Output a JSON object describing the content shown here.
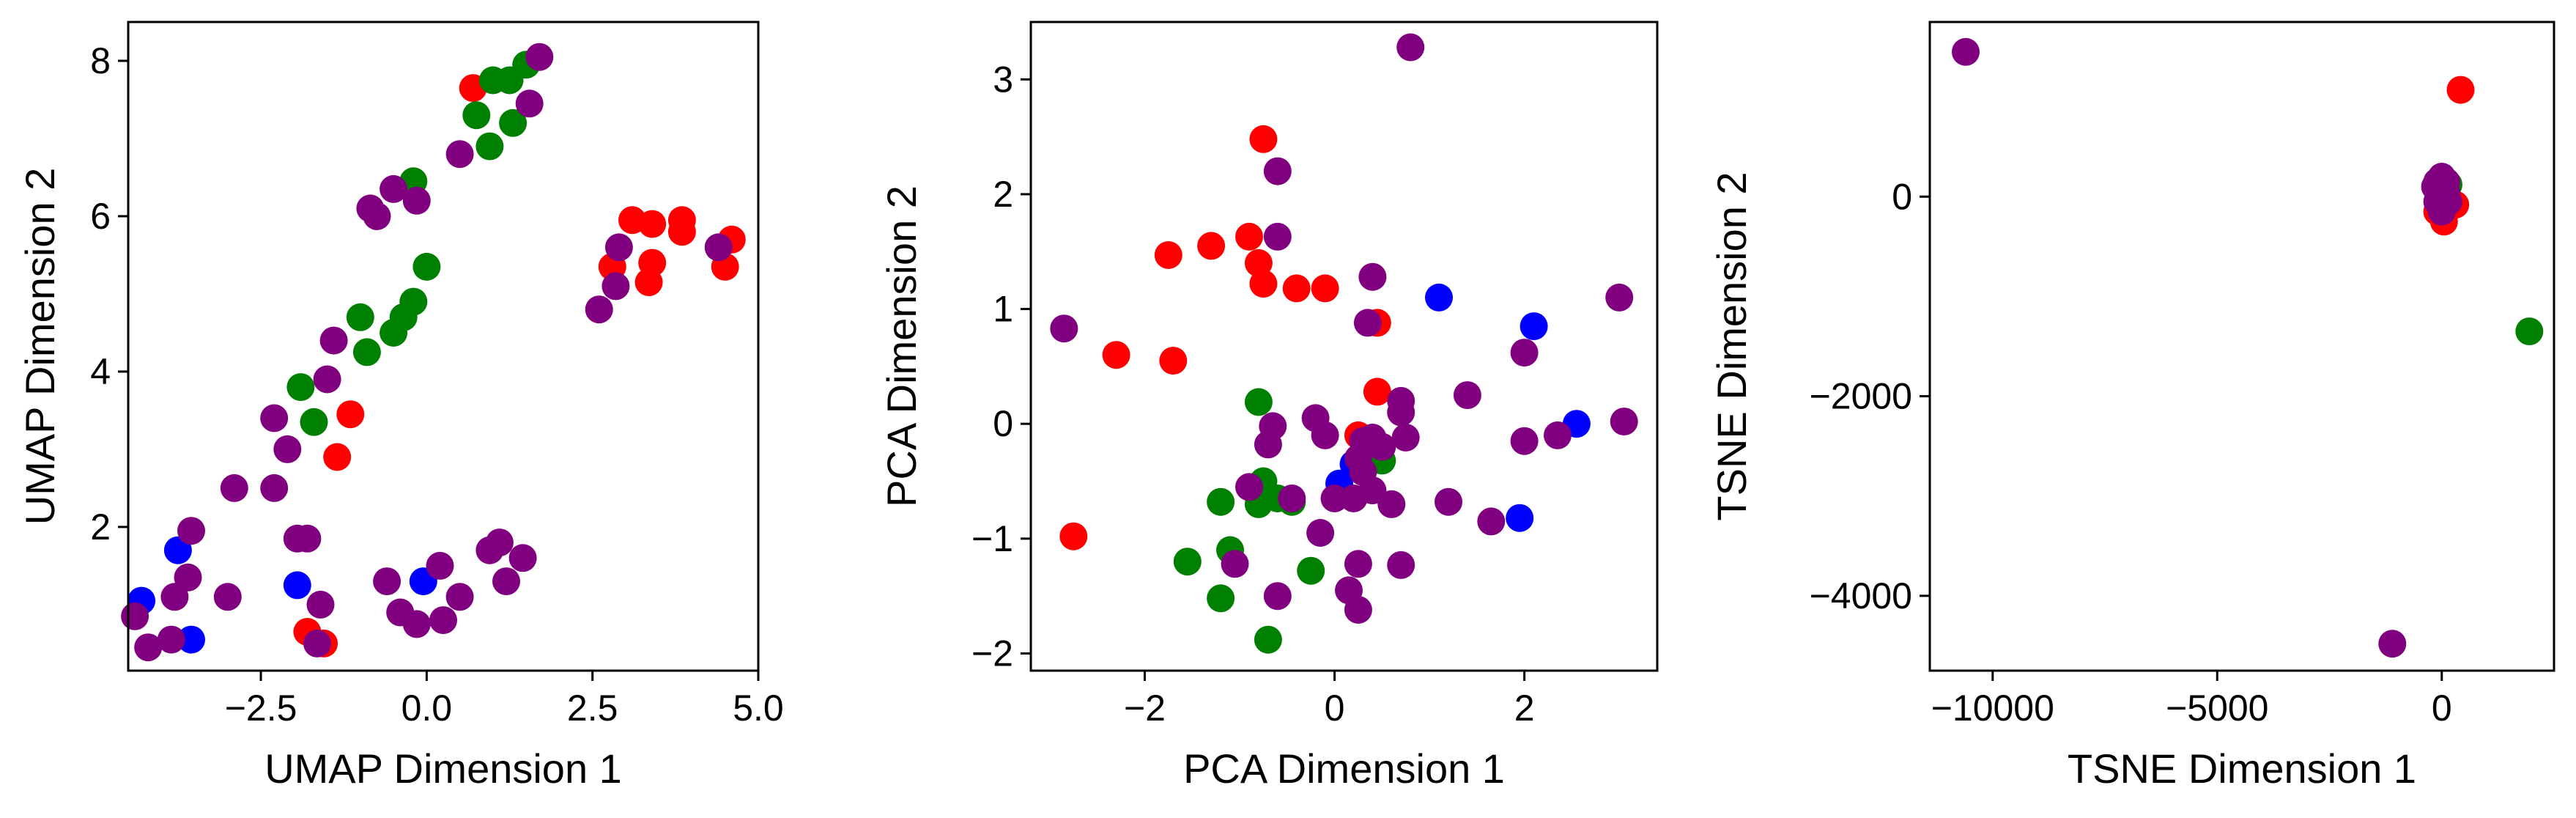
{
  "colors": {
    "red": "#ff0000",
    "green": "#008000",
    "blue": "#0000ff",
    "purple": "#800080"
  },
  "chart_data": [
    {
      "type": "scatter",
      "xlabel": "UMAP Dimension 1",
      "ylabel": "UMAP Dimension 2",
      "xlim": [
        -4.5,
        5.0
      ],
      "ylim": [
        0.15,
        8.5
      ],
      "xticks": [
        -2.5,
        0.0,
        2.5,
        5.0
      ],
      "xtick_labels": [
        "−2.5",
        "0.0",
        "2.5",
        "5.0"
      ],
      "yticks": [
        2,
        4,
        6,
        8
      ],
      "ytick_labels": [
        "2",
        "4",
        "6",
        "8"
      ],
      "grid": false,
      "series": [
        {
          "color": "#ff0000",
          "points": [
            [
              0.7,
              7.65
            ],
            [
              3.1,
              5.95
            ],
            [
              3.4,
              5.9
            ],
            [
              3.85,
              5.95
            ],
            [
              3.85,
              5.8
            ],
            [
              4.6,
              5.7
            ],
            [
              2.8,
              5.35
            ],
            [
              3.4,
              5.4
            ],
            [
              3.35,
              5.15
            ],
            [
              4.5,
              5.35
            ],
            [
              -1.15,
              3.45
            ],
            [
              -1.35,
              2.9
            ],
            [
              -1.8,
              0.65
            ],
            [
              -1.55,
              0.5
            ]
          ]
        },
        {
          "color": "#008000",
          "points": [
            [
              1.0,
              7.75
            ],
            [
              1.25,
              7.75
            ],
            [
              1.5,
              7.95
            ],
            [
              1.3,
              7.2
            ],
            [
              0.75,
              7.3
            ],
            [
              0.95,
              6.9
            ],
            [
              -0.2,
              6.45
            ],
            [
              0.0,
              5.35
            ],
            [
              -0.2,
              4.9
            ],
            [
              -0.35,
              4.7
            ],
            [
              -0.5,
              4.5
            ],
            [
              -0.9,
              4.25
            ],
            [
              -1.0,
              4.7
            ],
            [
              -1.9,
              3.8
            ],
            [
              -1.7,
              3.35
            ]
          ]
        },
        {
          "color": "#0000ff",
          "points": [
            [
              -3.75,
              1.7
            ],
            [
              -4.3,
              1.05
            ],
            [
              -3.55,
              0.55
            ],
            [
              -1.95,
              1.25
            ],
            [
              -0.05,
              1.3
            ]
          ]
        },
        {
          "color": "#800080",
          "points": [
            [
              1.7,
              8.05
            ],
            [
              1.55,
              7.45
            ],
            [
              0.5,
              6.8
            ],
            [
              -0.5,
              6.35
            ],
            [
              -0.85,
              6.1
            ],
            [
              -0.75,
              6.0
            ],
            [
              -0.15,
              6.2
            ],
            [
              2.9,
              5.6
            ],
            [
              2.85,
              5.1
            ],
            [
              2.6,
              4.8
            ],
            [
              4.4,
              5.6
            ],
            [
              -1.4,
              4.4
            ],
            [
              -1.5,
              3.9
            ],
            [
              -2.3,
              3.4
            ],
            [
              -2.1,
              3.0
            ],
            [
              -2.3,
              2.5
            ],
            [
              -2.9,
              2.5
            ],
            [
              -1.95,
              1.85
            ],
            [
              -1.8,
              1.85
            ],
            [
              -3.55,
              1.95
            ],
            [
              -3.6,
              1.35
            ],
            [
              -3.8,
              1.1
            ],
            [
              -3.0,
              1.1
            ],
            [
              -4.4,
              0.85
            ],
            [
              -3.85,
              0.55
            ],
            [
              -4.2,
              0.45
            ],
            [
              -1.6,
              1.0
            ],
            [
              -1.65,
              0.5
            ],
            [
              -0.6,
              1.3
            ],
            [
              -0.4,
              0.9
            ],
            [
              -0.15,
              0.75
            ],
            [
              0.25,
              0.8
            ],
            [
              0.2,
              1.5
            ],
            [
              0.5,
              1.1
            ],
            [
              0.95,
              1.7
            ],
            [
              1.1,
              1.8
            ],
            [
              1.45,
              1.6
            ],
            [
              1.2,
              1.3
            ]
          ]
        }
      ]
    },
    {
      "type": "scatter",
      "xlabel": "PCA Dimension 1",
      "ylabel": "PCA Dimension 2",
      "xlim": [
        -3.2,
        3.4
      ],
      "ylim": [
        -2.15,
        3.5
      ],
      "xticks": [
        -2,
        0,
        2
      ],
      "xtick_labels": [
        "−2",
        "0",
        "2"
      ],
      "yticks": [
        -2,
        -1,
        0,
        1,
        2,
        3
      ],
      "ytick_labels": [
        "−2",
        "−1",
        "0",
        "1",
        "2",
        "3"
      ],
      "grid": false,
      "series": [
        {
          "color": "#ff0000",
          "points": [
            [
              -0.75,
              2.48
            ],
            [
              -1.75,
              1.47
            ],
            [
              -1.3,
              1.55
            ],
            [
              -0.9,
              1.63
            ],
            [
              -0.8,
              1.4
            ],
            [
              -0.75,
              1.22
            ],
            [
              -0.4,
              1.18
            ],
            [
              -0.1,
              1.18
            ],
            [
              0.45,
              0.88
            ],
            [
              0.45,
              0.28
            ],
            [
              0.25,
              -0.1
            ],
            [
              -2.3,
              0.6
            ],
            [
              -1.7,
              0.55
            ],
            [
              -2.75,
              -0.98
            ]
          ]
        },
        {
          "color": "#008000",
          "points": [
            [
              -0.8,
              0.19
            ],
            [
              -0.75,
              -0.5
            ],
            [
              -0.6,
              -0.65
            ],
            [
              -0.45,
              -0.68
            ],
            [
              -0.8,
              -0.7
            ],
            [
              -1.2,
              -0.68
            ],
            [
              -1.1,
              -1.1
            ],
            [
              -1.55,
              -1.2
            ],
            [
              -1.2,
              -1.52
            ],
            [
              -0.25,
              -1.28
            ],
            [
              -0.7,
              -1.88
            ],
            [
              0.5,
              -0.32
            ]
          ]
        },
        {
          "color": "#0000ff",
          "points": [
            [
              1.1,
              1.1
            ],
            [
              2.1,
              0.85
            ],
            [
              2.55,
              0.0
            ],
            [
              1.95,
              -0.82
            ],
            [
              0.05,
              -0.52
            ],
            [
              0.2,
              -0.35
            ]
          ]
        },
        {
          "color": "#800080",
          "points": [
            [
              0.8,
              3.28
            ],
            [
              -0.6,
              2.2
            ],
            [
              -0.6,
              1.63
            ],
            [
              0.4,
              1.28
            ],
            [
              0.35,
              0.88
            ],
            [
              -2.85,
              0.83
            ],
            [
              3.0,
              1.1
            ],
            [
              2.0,
              0.62
            ],
            [
              1.4,
              0.25
            ],
            [
              0.7,
              0.2
            ],
            [
              0.7,
              0.1
            ],
            [
              0.75,
              -0.12
            ],
            [
              2.35,
              -0.1
            ],
            [
              3.05,
              0.02
            ],
            [
              2.0,
              -0.15
            ],
            [
              -0.2,
              0.05
            ],
            [
              -0.1,
              -0.1
            ],
            [
              -0.65,
              -0.02
            ],
            [
              -0.7,
              -0.18
            ],
            [
              0.3,
              -0.15
            ],
            [
              0.4,
              -0.12
            ],
            [
              0.5,
              -0.2
            ],
            [
              0.25,
              -0.3
            ],
            [
              0.3,
              -0.42
            ],
            [
              0.2,
              -0.65
            ],
            [
              0.0,
              -0.65
            ],
            [
              0.4,
              -0.58
            ],
            [
              0.6,
              -0.7
            ],
            [
              1.2,
              -0.68
            ],
            [
              1.65,
              -0.85
            ],
            [
              -0.9,
              -0.55
            ],
            [
              -0.45,
              -0.65
            ],
            [
              -0.15,
              -0.95
            ],
            [
              -1.05,
              -1.22
            ],
            [
              0.25,
              -1.22
            ],
            [
              0.7,
              -1.23
            ],
            [
              -0.6,
              -1.5
            ],
            [
              0.15,
              -1.45
            ],
            [
              0.25,
              -1.62
            ]
          ]
        }
      ]
    },
    {
      "type": "scatter",
      "xlabel": "TSNE Dimension 1",
      "ylabel": "TSNE Dimension 2",
      "xlim": [
        -11400,
        2500
      ],
      "ylim": [
        -4750,
        1750
      ],
      "xticks": [
        -10000,
        -5000,
        0
      ],
      "xtick_labels": [
        "−10000",
        "−5000",
        "0"
      ],
      "yticks": [
        -4000,
        -2000,
        0
      ],
      "ytick_labels": [
        "−4000",
        "−2000",
        "0"
      ],
      "grid": false,
      "series": [
        {
          "color": "#ff0000",
          "points": [
            [
              420,
              1070
            ],
            [
              -100,
              -150
            ],
            [
              50,
              -250
            ],
            [
              300,
              -80
            ],
            [
              200,
              -50
            ]
          ]
        },
        {
          "color": "#008000",
          "points": [
            [
              1950,
              -1350
            ],
            [
              150,
              120
            ]
          ]
        },
        {
          "color": "#0000ff",
          "points": [
            [
              30,
              -20
            ]
          ]
        },
        {
          "color": "#800080",
          "points": [
            [
              -10600,
              1450
            ],
            [
              -1100,
              -4480
            ],
            [
              -100,
              150
            ],
            [
              0,
              200
            ],
            [
              100,
              150
            ],
            [
              50,
              0
            ],
            [
              -50,
              50
            ],
            [
              150,
              -50
            ],
            [
              -100,
              -50
            ],
            [
              0,
              -150
            ],
            [
              50,
              80
            ],
            [
              -150,
              100
            ],
            [
              100,
              50
            ],
            [
              0,
              100
            ]
          ]
        }
      ]
    }
  ]
}
